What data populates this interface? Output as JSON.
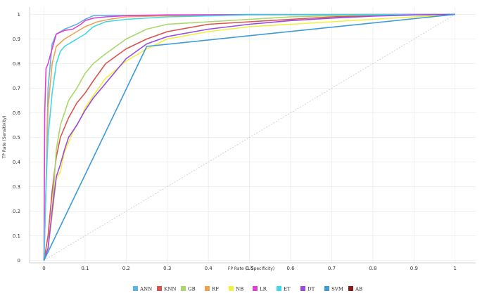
{
  "chart_data": {
    "type": "line",
    "title": "",
    "xlabel": "FP Rate (1-Specificity)",
    "ylabel": "TP Rate (Sensitivity)",
    "xlim": [
      -0.035,
      1.05
    ],
    "ylim": [
      -0.01,
      1.03
    ],
    "xticks": [
      0,
      0.1,
      0.2,
      0.3,
      0.4,
      0.5,
      0.6,
      0.7,
      0.8,
      0.9,
      1
    ],
    "yticks": [
      0,
      0.1,
      0.2,
      0.3,
      0.4,
      0.5,
      0.6,
      0.7,
      0.8,
      0.9,
      1
    ],
    "xtick_labels": [
      "0",
      "0.1",
      "0.2",
      "0.3",
      "0.4",
      "0.5",
      "0.6",
      "0.7",
      "0.8",
      "0.9",
      "1"
    ],
    "ytick_labels": [
      "0",
      "0.1",
      "0.2",
      "0.3",
      "0.4",
      "0.5",
      "0.6",
      "0.7",
      "0.8",
      "0.9",
      "1"
    ],
    "grid": true,
    "legend_position": "bottom",
    "diagonal_reference": true,
    "series": [
      {
        "name": "ANN",
        "color": "#5ab4e5",
        "x": [
          0,
          0.005,
          0.01,
          0.02,
          0.03,
          0.05,
          0.08,
          0.1,
          0.12,
          0.3,
          0.5,
          1
        ],
        "y": [
          0,
          0.3,
          0.7,
          0.88,
          0.92,
          0.94,
          0.96,
          0.98,
          0.995,
          0.997,
          1,
          1
        ]
      },
      {
        "name": "KNN",
        "color": "#d9534f",
        "x": [
          0,
          0.01,
          0.02,
          0.03,
          0.04,
          0.06,
          0.08,
          0.1,
          0.12,
          0.15,
          0.2,
          0.25,
          0.3,
          0.4,
          0.5,
          0.6,
          0.7,
          0.8,
          0.9,
          1
        ],
        "y": [
          0,
          0.1,
          0.28,
          0.42,
          0.5,
          0.58,
          0.64,
          0.68,
          0.73,
          0.8,
          0.86,
          0.9,
          0.93,
          0.96,
          0.97,
          0.98,
          0.99,
          0.995,
          0.998,
          1
        ]
      },
      {
        "name": "GB",
        "color": "#a8d86a",
        "x": [
          0,
          0.01,
          0.02,
          0.03,
          0.04,
          0.05,
          0.06,
          0.08,
          0.1,
          0.12,
          0.15,
          0.2,
          0.25,
          0.3,
          0.4,
          0.5,
          0.6,
          0.7,
          0.8,
          0.9,
          1
        ],
        "y": [
          0,
          0.05,
          0.2,
          0.45,
          0.55,
          0.6,
          0.65,
          0.7,
          0.76,
          0.8,
          0.84,
          0.9,
          0.94,
          0.96,
          0.97,
          0.98,
          0.99,
          0.995,
          0.998,
          0.999,
          1
        ]
      },
      {
        "name": "RF",
        "color": "#f0a050",
        "x": [
          0,
          0.005,
          0.01,
          0.02,
          0.03,
          0.05,
          0.08,
          0.1,
          0.13,
          0.16,
          0.2,
          0.3,
          0.5,
          1
        ],
        "y": [
          0,
          0.3,
          0.62,
          0.8,
          0.87,
          0.9,
          0.93,
          0.95,
          0.97,
          0.98,
          0.99,
          0.995,
          0.998,
          1
        ]
      },
      {
        "name": "NB",
        "color": "#f0f040",
        "x": [
          0,
          0.01,
          0.02,
          0.03,
          0.04,
          0.05,
          0.07,
          0.09,
          0.1,
          0.12,
          0.15,
          0.2,
          0.25,
          0.3,
          0.4,
          0.5,
          0.6,
          0.7,
          0.8,
          0.9,
          1
        ],
        "y": [
          0,
          0.05,
          0.18,
          0.33,
          0.36,
          0.44,
          0.52,
          0.58,
          0.62,
          0.67,
          0.74,
          0.81,
          0.86,
          0.9,
          0.93,
          0.95,
          0.96,
          0.97,
          0.98,
          0.99,
          1
        ]
      },
      {
        "name": "LR",
        "color": "#e040d0",
        "x": [
          0,
          0.002,
          0.005,
          0.01,
          0.02,
          0.03,
          0.05,
          0.07,
          0.09,
          0.1,
          0.12,
          0.15,
          0.2,
          0.3,
          0.5,
          1
        ],
        "y": [
          0,
          0.6,
          0.78,
          0.8,
          0.86,
          0.92,
          0.935,
          0.94,
          0.96,
          0.975,
          0.985,
          0.99,
          0.995,
          0.998,
          0.999,
          1
        ]
      },
      {
        "name": "ET",
        "color": "#40d8e8",
        "x": [
          0,
          0.005,
          0.01,
          0.02,
          0.03,
          0.04,
          0.05,
          0.06,
          0.07,
          0.08,
          0.1,
          0.12,
          0.15,
          0.2,
          0.3,
          0.5,
          1
        ],
        "y": [
          0,
          0.3,
          0.5,
          0.68,
          0.8,
          0.85,
          0.87,
          0.88,
          0.89,
          0.9,
          0.92,
          0.95,
          0.97,
          0.98,
          0.99,
          0.998,
          1
        ]
      },
      {
        "name": "DT",
        "color": "#9a4ae0",
        "x": [
          0,
          0.01,
          0.02,
          0.03,
          0.04,
          0.05,
          0.06,
          0.08,
          0.1,
          0.12,
          0.14,
          0.17,
          0.2,
          0.25,
          0.3,
          0.4,
          0.5,
          0.6,
          0.7,
          0.8,
          0.9,
          1
        ],
        "y": [
          0,
          0.05,
          0.2,
          0.34,
          0.39,
          0.45,
          0.5,
          0.55,
          0.61,
          0.66,
          0.7,
          0.76,
          0.82,
          0.88,
          0.91,
          0.94,
          0.96,
          0.975,
          0.985,
          0.993,
          0.998,
          1
        ]
      },
      {
        "name": "SVM",
        "color": "#3f9ad8",
        "x": [
          0,
          0.25,
          1
        ],
        "y": [
          0,
          0.87,
          1
        ]
      },
      {
        "name": "AB",
        "color": "#8b1a1a",
        "x": [],
        "y": []
      }
    ]
  }
}
